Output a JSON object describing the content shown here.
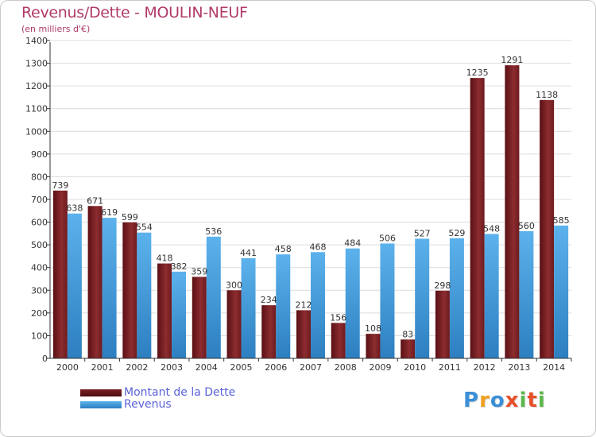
{
  "chart_data": {
    "type": "bar",
    "title": "Revenus/Dette - MOULIN-NEUF",
    "subtitle": "(en milliers d'€)",
    "categories": [
      "2000",
      "2001",
      "2002",
      "2003",
      "2004",
      "2005",
      "2006",
      "2007",
      "2008",
      "2009",
      "2010",
      "2011",
      "2012",
      "2013",
      "2014"
    ],
    "series": [
      {
        "name": "Montant de la Dette",
        "color": "#7a1f24",
        "values": [
          739,
          671,
          599,
          418,
          359,
          300,
          234,
          212,
          156,
          108,
          83,
          298,
          1235,
          1291,
          1138
        ]
      },
      {
        "name": "Revenus",
        "color": "#4fa3de",
        "values": [
          638,
          619,
          554,
          382,
          536,
          441,
          458,
          468,
          484,
          506,
          527,
          529,
          548,
          560,
          585
        ]
      }
    ],
    "ylim": [
      0,
      1400
    ],
    "yticks": [
      0,
      100,
      200,
      300,
      400,
      500,
      600,
      700,
      800,
      900,
      1000,
      1100,
      1200,
      1300,
      1400
    ],
    "grid": true,
    "legend_position": "bottom-left"
  },
  "logo": {
    "letters": [
      "P",
      "r",
      "o",
      "x",
      "i",
      "t",
      "i"
    ],
    "colors": [
      "#3a8fd6",
      "#f0a020",
      "#3a8fd6",
      "#e8502a",
      "#5bb84a",
      "#e8502a",
      "#5bb84a"
    ]
  }
}
